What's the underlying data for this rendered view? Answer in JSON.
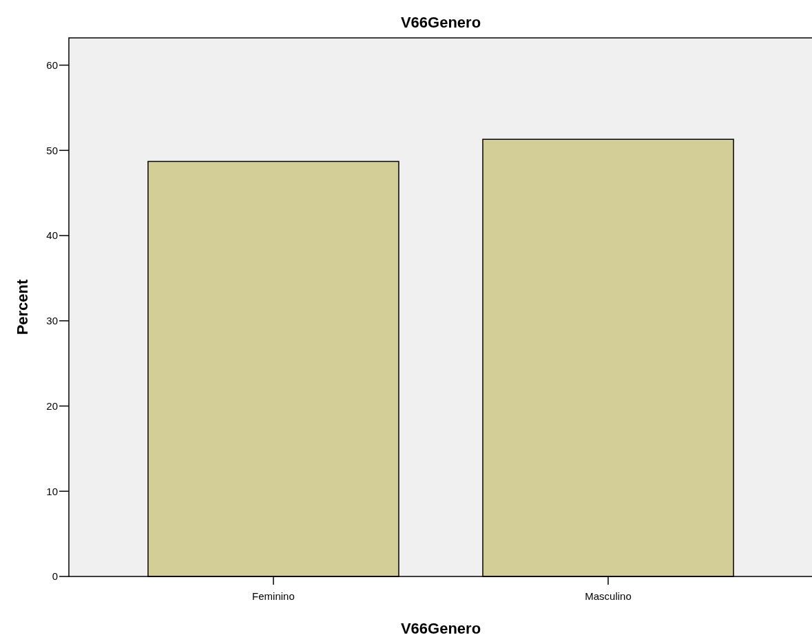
{
  "chart_data": {
    "type": "bar",
    "title": "V66Genero",
    "xlabel": "V66Genero",
    "ylabel": "Percent",
    "categories": [
      "Feminino",
      "Masculino"
    ],
    "values": [
      48.7,
      51.3
    ],
    "color": "#d3ce97",
    "ylim": [
      0,
      63.2
    ],
    "yticks": [
      0,
      10,
      20,
      30,
      40,
      50,
      60
    ]
  }
}
